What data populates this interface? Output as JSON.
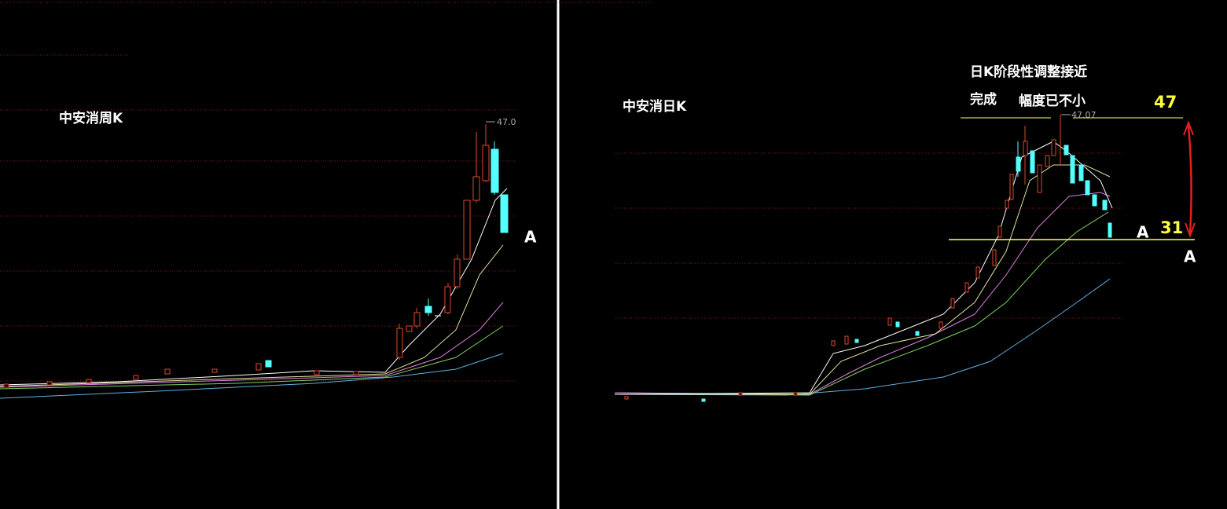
{
  "left_panel": {
    "title": "中安消周K",
    "peak_label": "47.0",
    "marker": "A"
  },
  "right_panel": {
    "title": "中安消日K",
    "note_line1": "日K阶段性调整接近",
    "note_line2": "完成",
    "note_line3": "幅度已不小",
    "peak_label": "47.07",
    "high_level": "47",
    "low_level": "31",
    "marker_inner": "A",
    "marker_outer": "A"
  }
}
